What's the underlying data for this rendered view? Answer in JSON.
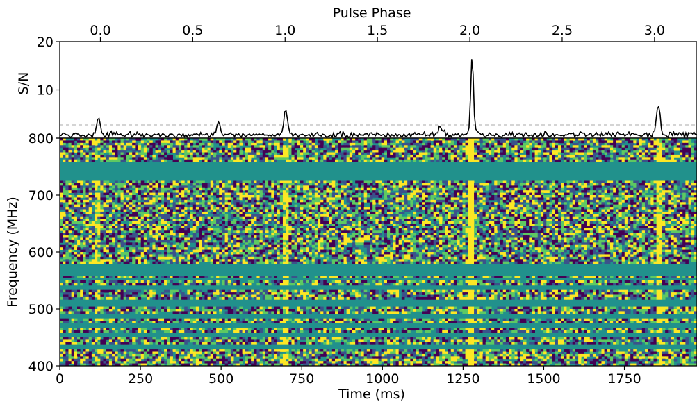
{
  "chart_data": [
    {
      "type": "line",
      "panel": "profile",
      "ylabel": "S/N",
      "ylim": [
        0,
        20
      ],
      "yticks": [
        0,
        10,
        20
      ],
      "top_xlabel": "Pulse Phase",
      "top_xlim": [
        -0.22,
        3.23
      ],
      "top_xticks": [
        "0.0",
        "0.5",
        "1.0",
        "1.5",
        "2.0",
        "2.5",
        "3.0"
      ],
      "baseline": 0,
      "series": [
        {
          "x": [
            0,
            120,
            490,
            700,
            1180,
            1278,
            1855,
            1950
          ],
          "y": [
            0,
            3.5,
            2.7,
            5.2,
            2.0,
            16.5,
            6.3,
            0
          ],
          "noise_rms": 0.7,
          "color": "#000000"
        }
      ]
    },
    {
      "type": "heatmap",
      "panel": "dynamic-spectrum",
      "xlabel": "Time (ms)",
      "ylabel": "Frequency (MHz)",
      "xlim": [
        0,
        1975
      ],
      "ylim": [
        400,
        800
      ],
      "xticks": [
        "0",
        "250",
        "500",
        "750",
        "1000",
        "1250",
        "1500",
        "1750"
      ],
      "yticks": [
        "400",
        "500",
        "600",
        "700",
        "800"
      ],
      "colormap": [
        "#440154",
        "#3b528b",
        "#21918c",
        "#5ec962",
        "#fde725"
      ],
      "masked_color": "#21918c",
      "masked_bands_mhz": [
        [
          723,
          757
        ],
        [
          560,
          578
        ],
        [
          548,
          553
        ],
        [
          535,
          540
        ],
        [
          505,
          515
        ],
        [
          483,
          490
        ],
        [
          468,
          473
        ],
        [
          450,
          459
        ],
        [
          430,
          437
        ]
      ],
      "pulse_times_ms": [
        120,
        700,
        1278,
        1855
      ],
      "pulse_strength": [
        0.3,
        0.45,
        1.0,
        0.55
      ]
    }
  ]
}
